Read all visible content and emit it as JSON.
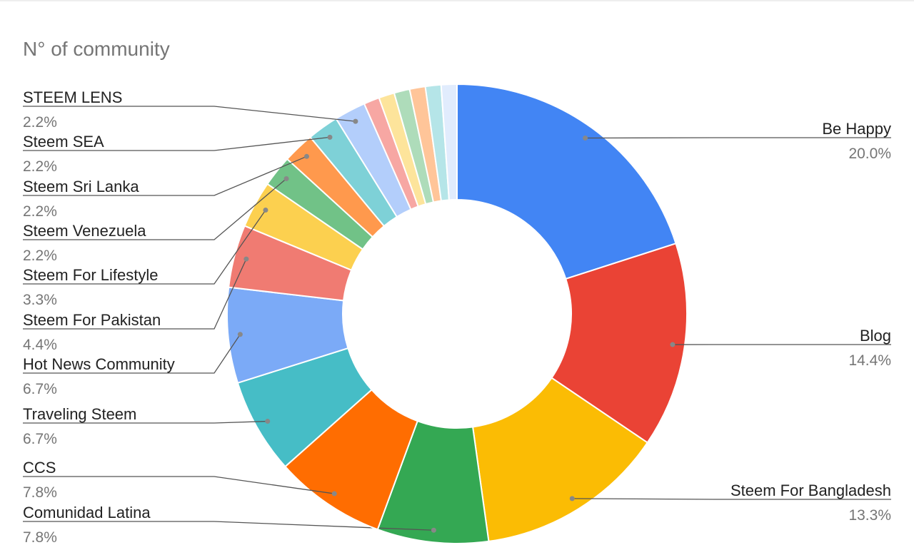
{
  "chart_data": {
    "type": "pie",
    "title": "N° of community",
    "donut": true,
    "categories": [
      "Be Happy",
      "Blog",
      "Steem For Bangladesh",
      "Comunidad Latina",
      "CCS",
      "Traveling Steem",
      "Hot News Community",
      "Steem For Pakistan",
      "Steem For Lifestyle",
      "Steem Venezuela",
      "Steem Sri Lanka",
      "Steem SEA",
      "STEEM LENS",
      null,
      null,
      null,
      null,
      null,
      null
    ],
    "values": [
      20.0,
      14.4,
      13.3,
      7.8,
      7.8,
      6.7,
      6.7,
      4.4,
      3.3,
      2.2,
      2.2,
      2.2,
      2.2,
      1.1,
      1.1,
      1.1,
      1.1,
      1.1,
      1.1
    ],
    "value_labels": [
      "20.0%",
      "14.4%",
      "13.3%",
      "7.8%",
      "7.8%",
      "6.7%",
      "6.7%",
      "4.4%",
      "3.3%",
      "2.2%",
      "2.2%",
      "2.2%",
      "2.2%",
      null,
      null,
      null,
      null,
      null,
      null
    ],
    "colors": [
      "#4285f4",
      "#ea4335",
      "#fbbc04",
      "#34a853",
      "#ff6d01",
      "#46bdc6",
      "#7baaf7",
      "#f07b72",
      "#fcd04f",
      "#71c287",
      "#ff994d",
      "#7ed1d7",
      "#b3cefb",
      "#f7a7a3",
      "#fde49b",
      "#aedcba",
      "#ffc599",
      "#b5e5e8",
      "#e1ecfd"
    ]
  }
}
